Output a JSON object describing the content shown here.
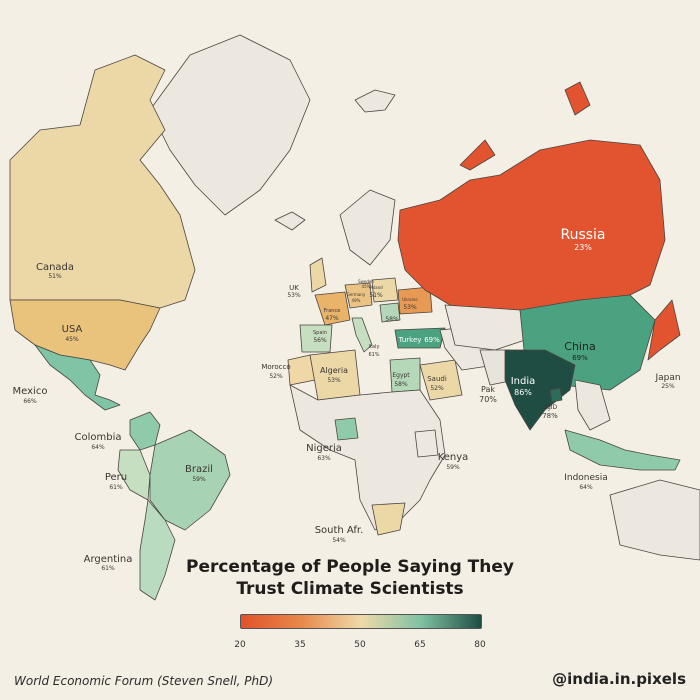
{
  "title_line1": "Percentage of People Saying They",
  "title_line2": "Trust Climate Scientists",
  "source": "World Economic Forum (Steven Snell, PhD)",
  "handle": "@india.in.pixels",
  "legend": {
    "ticks": [
      "20",
      "35",
      "50",
      "65",
      "80"
    ],
    "colors": [
      "#e2512c",
      "#e7894a",
      "#efd9a9",
      "#7fc2a3",
      "#1f4d44"
    ]
  },
  "countries": [
    {
      "name": "Canada",
      "pct": "51%"
    },
    {
      "name": "USA",
      "pct": "45%"
    },
    {
      "name": "Mexico",
      "pct": "66%"
    },
    {
      "name": "Colombia",
      "pct": "64%"
    },
    {
      "name": "Peru",
      "pct": "61%"
    },
    {
      "name": "Brazil",
      "pct": "59%"
    },
    {
      "name": "Argentina",
      "pct": "61%"
    },
    {
      "name": "UK",
      "pct": "53%"
    },
    {
      "name": "France",
      "pct": "47%"
    },
    {
      "name": "Germany",
      "pct": "49%"
    },
    {
      "name": "Sweden",
      "pct": "45%"
    },
    {
      "name": "Poland",
      "pct": "51%"
    },
    {
      "name": "Ukraine",
      "pct": "53%"
    },
    {
      "name": "Spain",
      "pct": "56%"
    },
    {
      "name": "Italy",
      "pct": "61%"
    },
    {
      "name": "Turkey",
      "pct": "69%"
    },
    {
      "name": "Morocco",
      "pct": "52%"
    },
    {
      "name": "Algeria",
      "pct": "53%"
    },
    {
      "name": "Egypt",
      "pct": "58%"
    },
    {
      "name": "Saudi",
      "pct": "52%"
    },
    {
      "name": "Nigeria",
      "pct": "63%"
    },
    {
      "name": "Kenya",
      "pct": "59%"
    },
    {
      "name": "South Afr.",
      "pct": "54%"
    },
    {
      "name": "Russia",
      "pct": "23%"
    },
    {
      "name": "China",
      "pct": "69%"
    },
    {
      "name": "India",
      "pct": "86%"
    },
    {
      "name": "Pak",
      "pct": "70%"
    },
    {
      "name": "BgID",
      "pct": "78%"
    },
    {
      "name": "Japan",
      "pct": "25%"
    },
    {
      "name": "Indonesia",
      "pct": "64%"
    }
  ],
  "extra_labels": {
    "romania": "58%"
  }
}
